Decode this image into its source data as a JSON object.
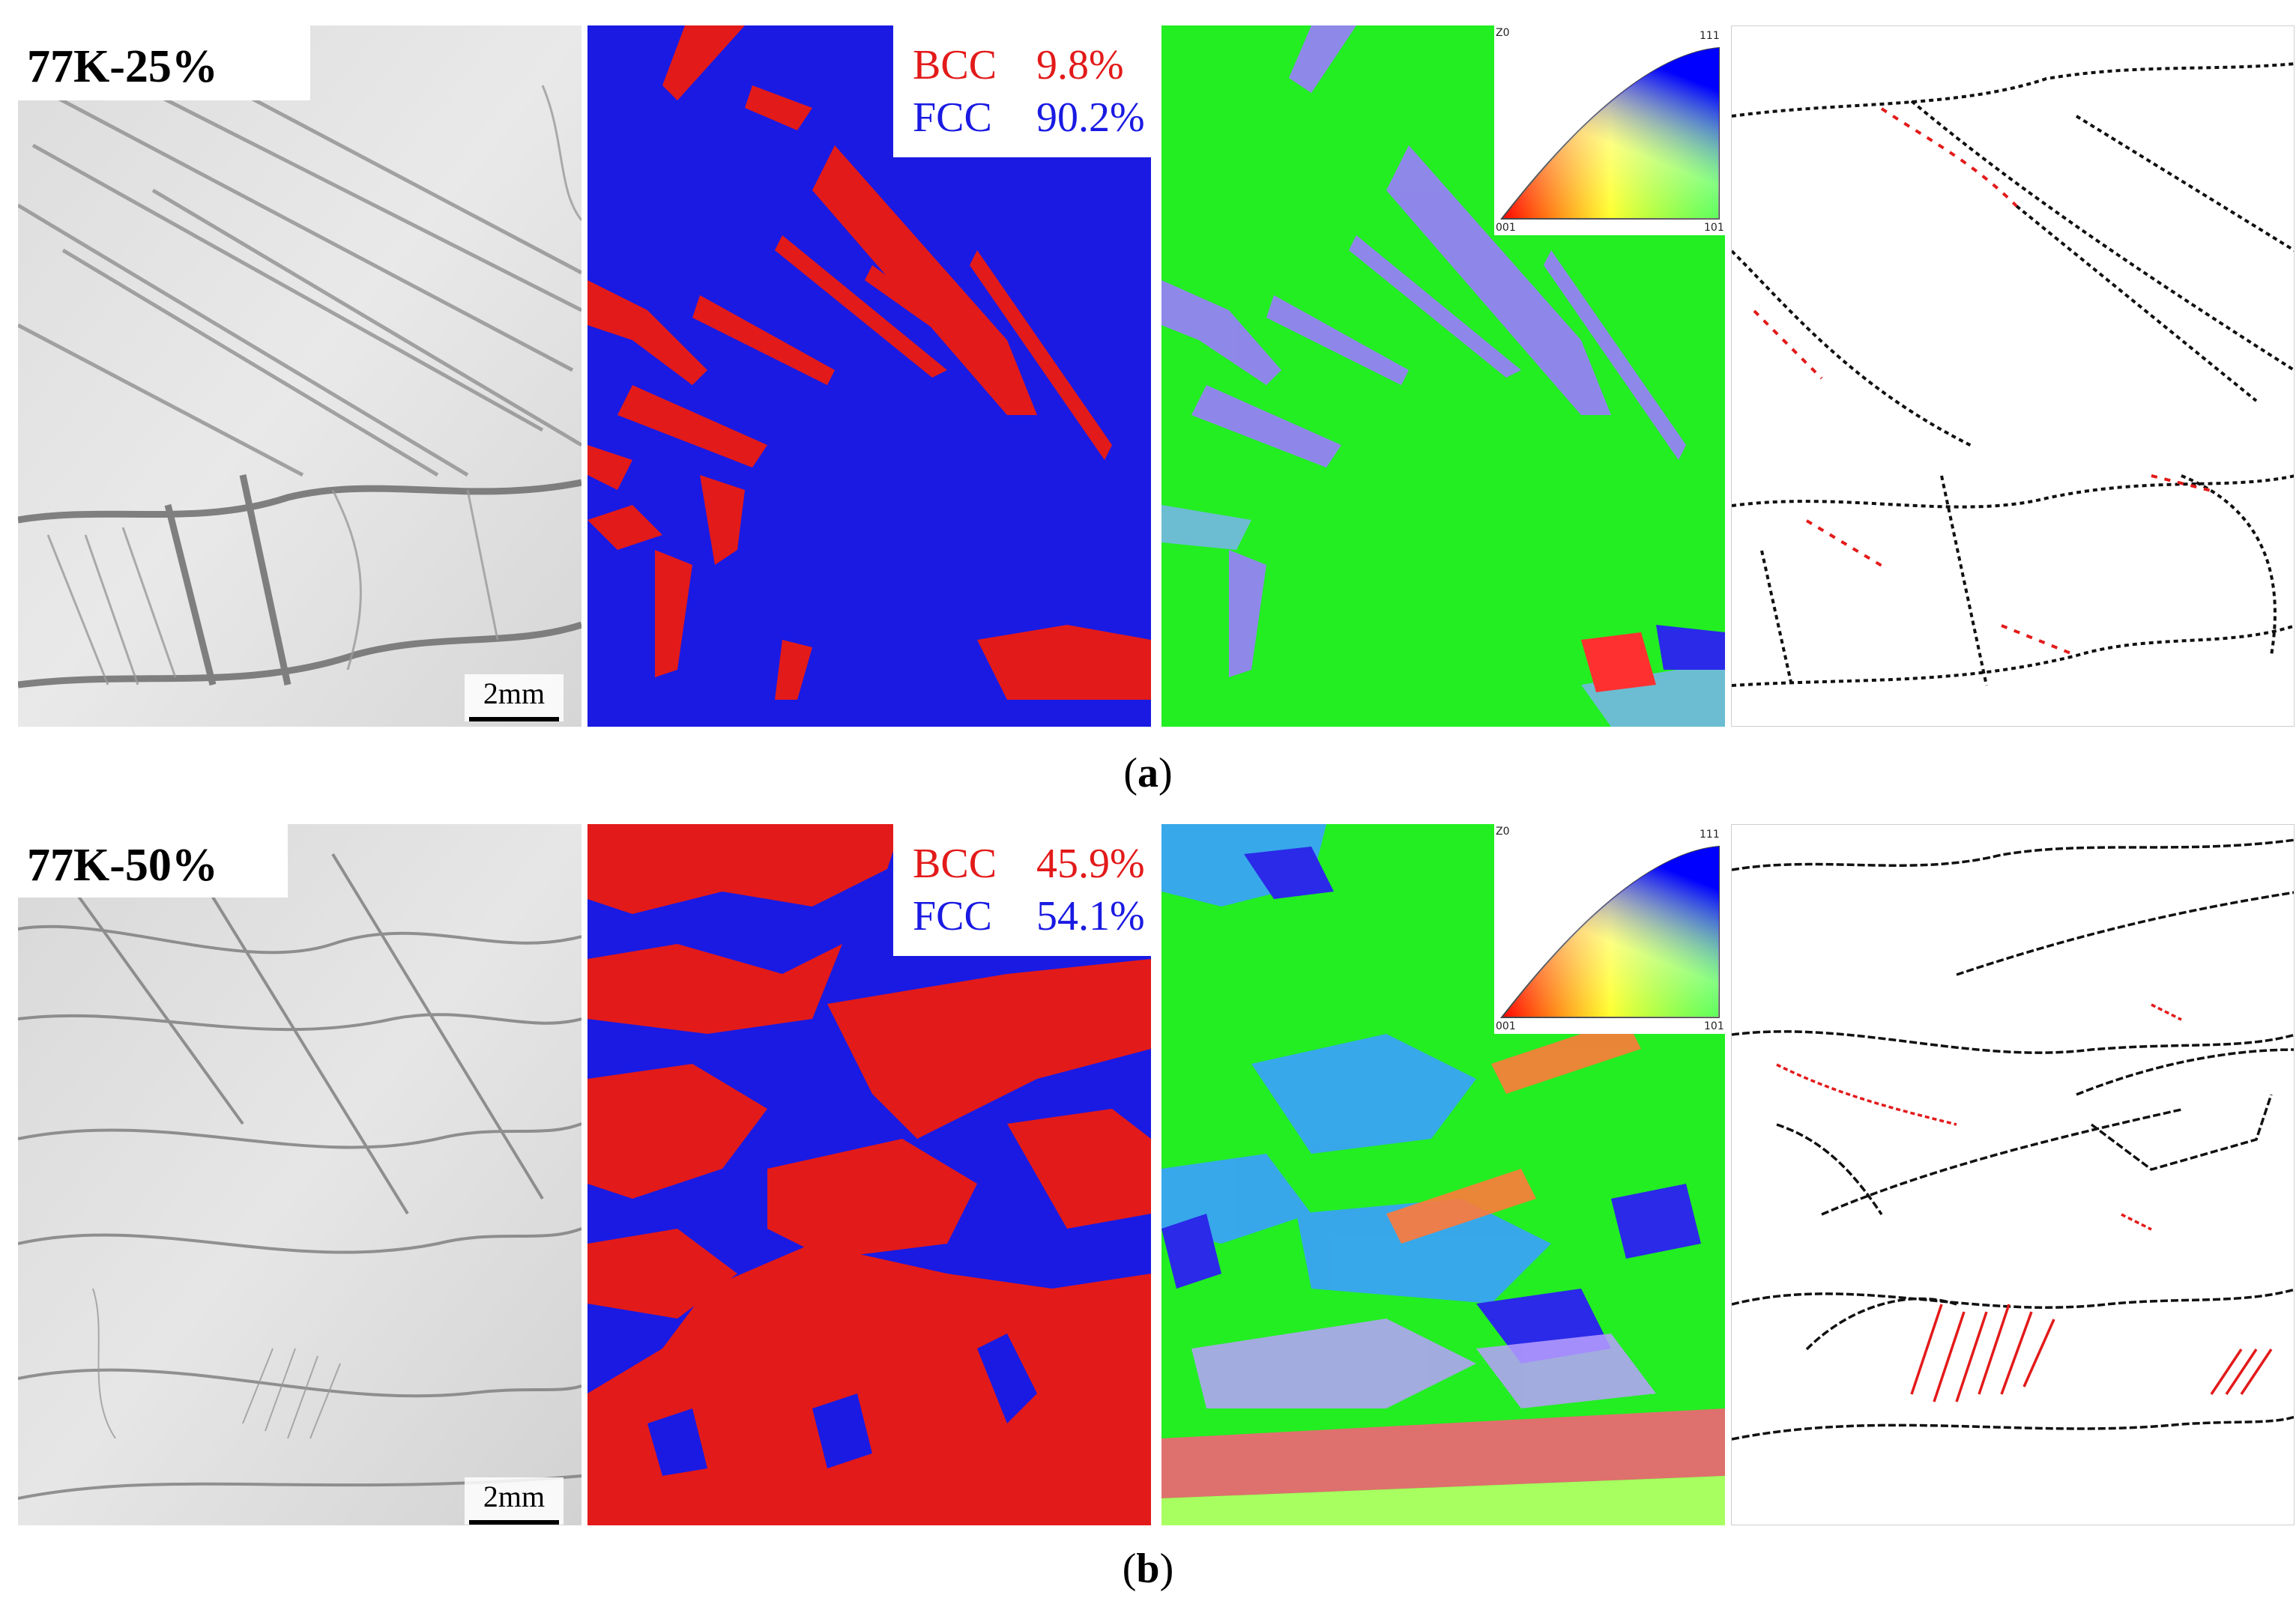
{
  "rows": [
    {
      "label": "77K-25%",
      "scale_bar": "2mm",
      "phases": [
        {
          "name": "BCC",
          "value": "9.8%",
          "color": "#e31a1a"
        },
        {
          "name": "FCC",
          "value": "90.2%",
          "color": "#1a1ae3"
        }
      ],
      "ipf_key": {
        "corner_top": "111",
        "corner_left": "001",
        "corner_right": "101",
        "axis": "Z0"
      },
      "caption_letter": "a"
    },
    {
      "label": "77K-50%",
      "scale_bar": "2mm",
      "phases": [
        {
          "name": "BCC",
          "value": "45.9%",
          "color": "#e31a1a"
        },
        {
          "name": "FCC",
          "value": "54.1%",
          "color": "#1a1ae3"
        }
      ],
      "ipf_key": {
        "corner_top": "111",
        "corner_left": "001",
        "corner_right": "101",
        "axis": "Z0"
      },
      "caption_letter": "b"
    }
  ],
  "colors": {
    "bcc": "#e31a1a",
    "fcc": "#1a1ae3",
    "ipf_green": "#22ee22",
    "boundary_black": "#111111",
    "boundary_red": "#e31a1a"
  },
  "captions": {
    "a_open": "(",
    "a_letter": "a",
    "a_close": ")",
    "b_open": "(",
    "b_letter": "b",
    "b_close": ")"
  }
}
